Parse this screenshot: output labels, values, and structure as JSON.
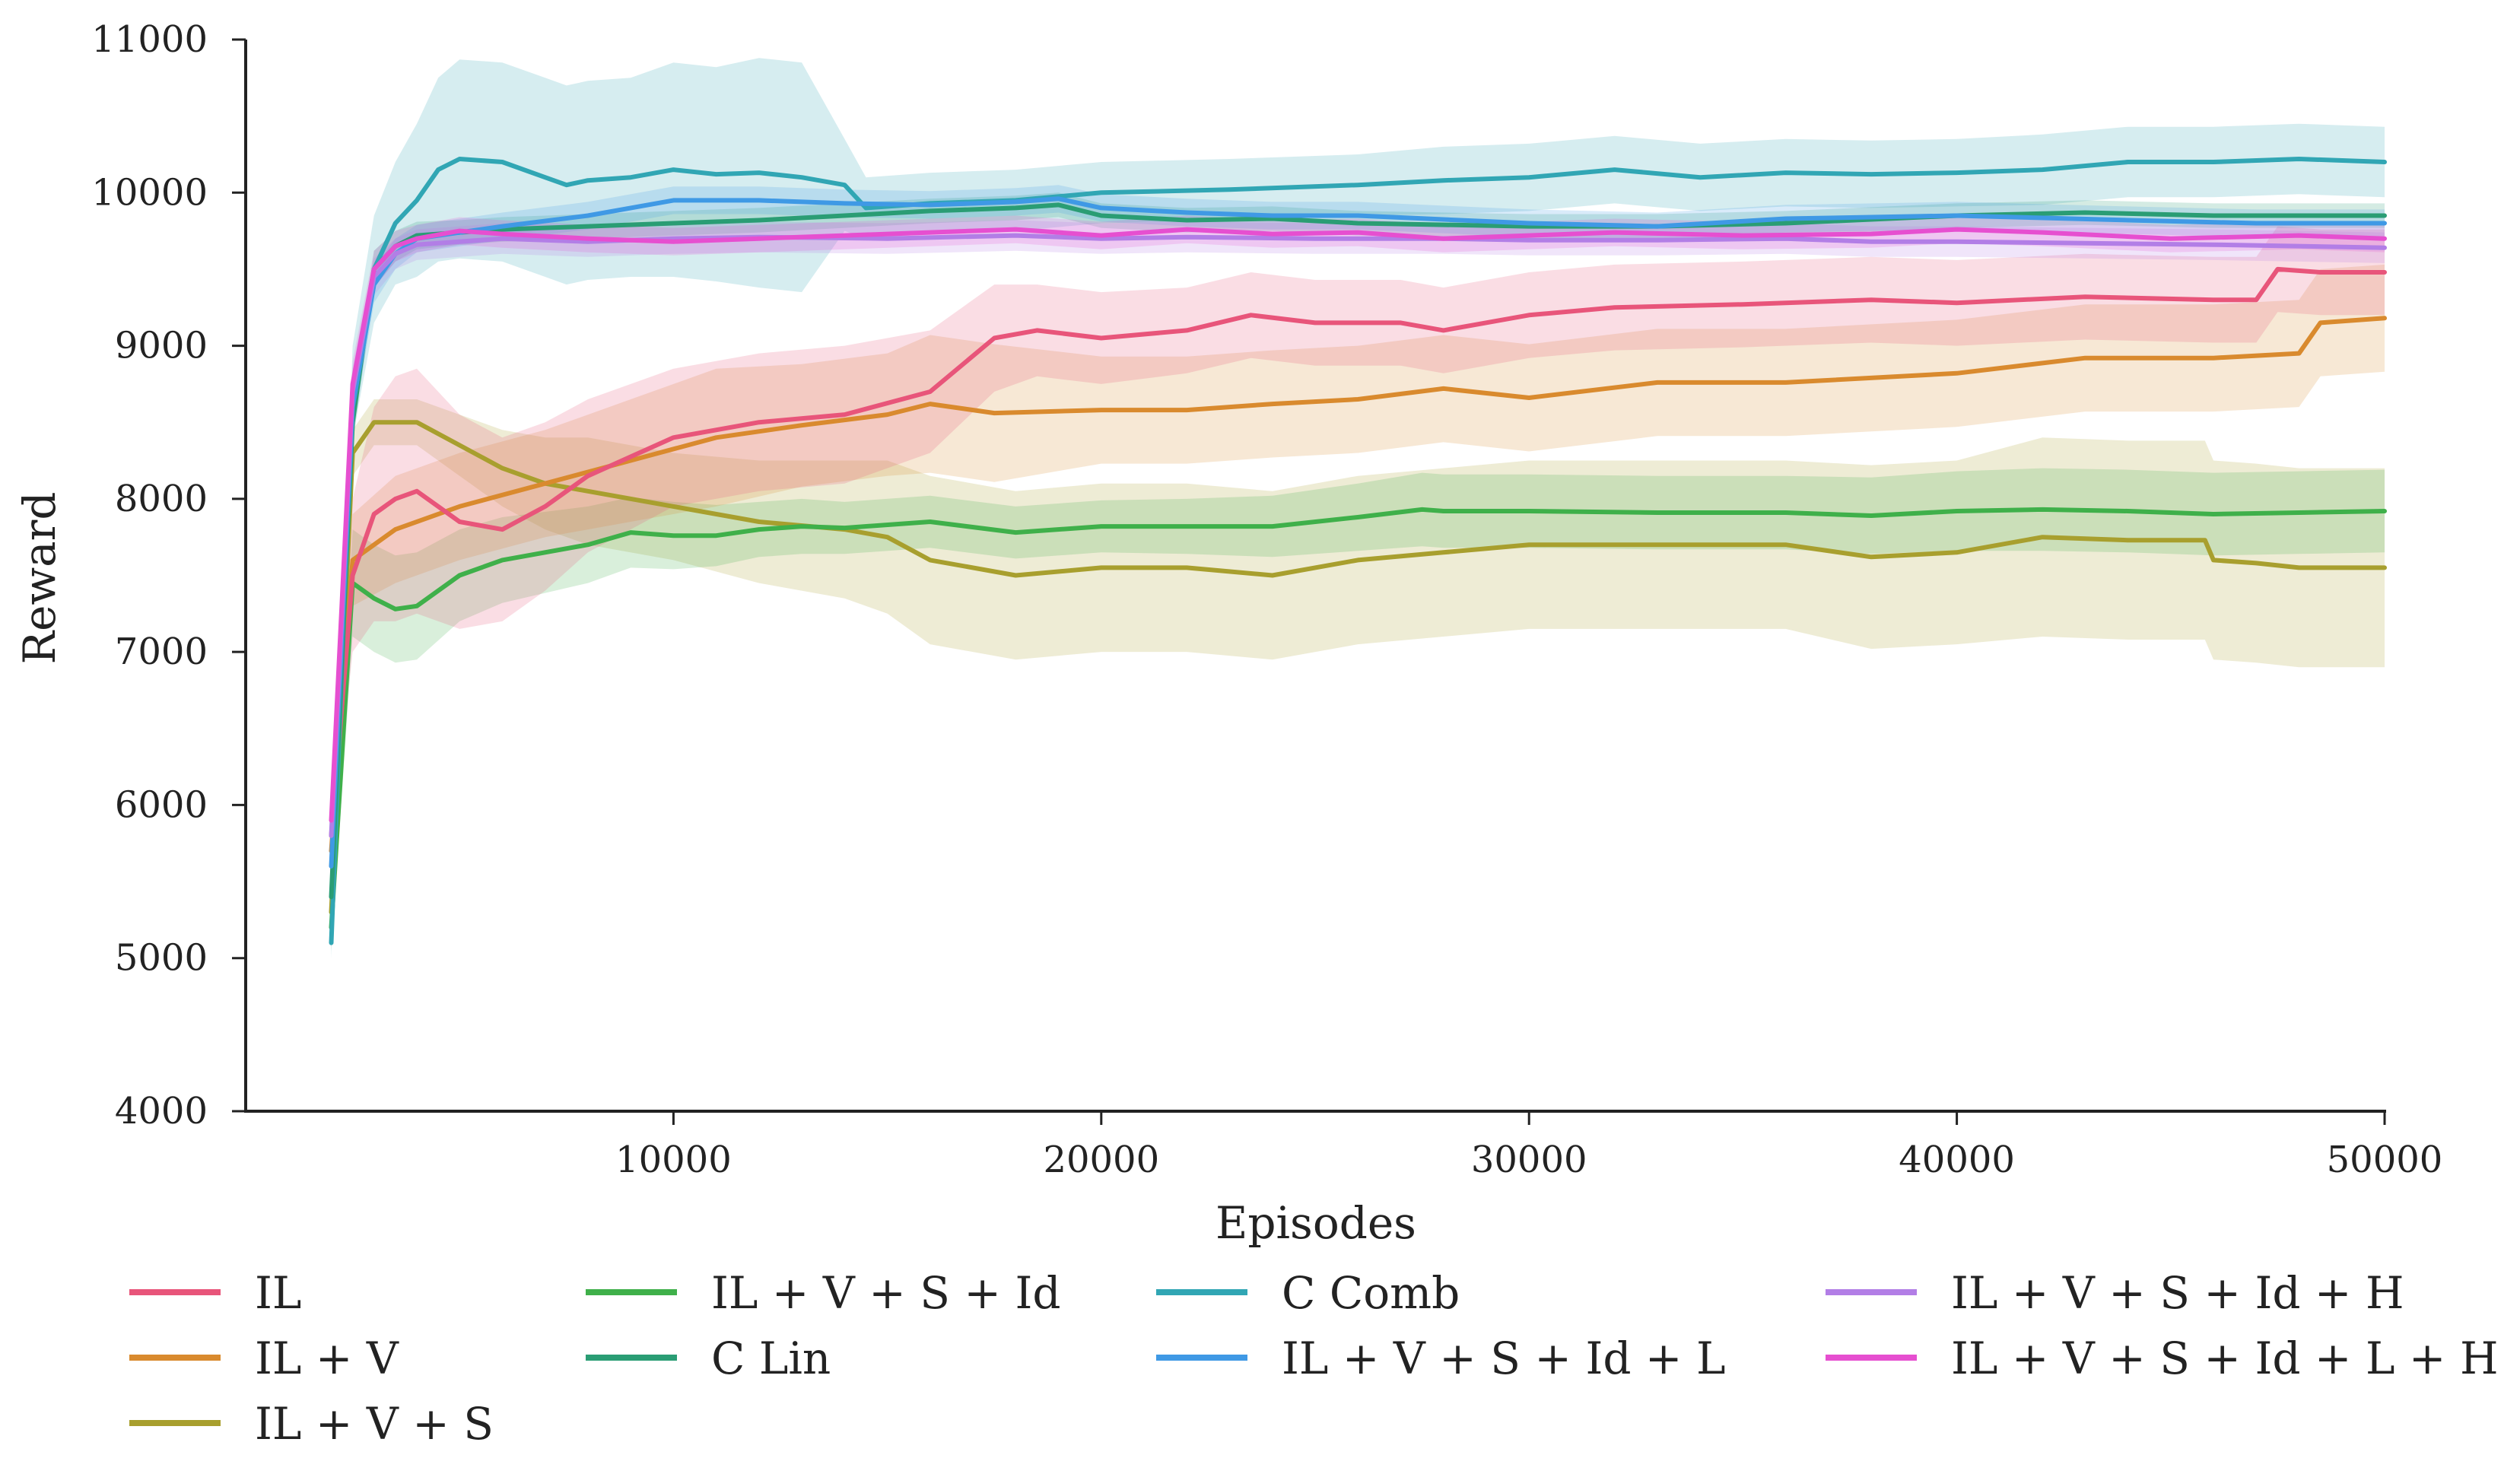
{
  "chart_data": {
    "type": "line",
    "title": "",
    "xlabel": "Episodes",
    "ylabel": "Reward",
    "xlim": [
      0,
      50000
    ],
    "ylim": [
      4000,
      11000
    ],
    "xticks": [
      10000,
      20000,
      30000,
      40000,
      50000
    ],
    "yticks": [
      4000,
      5000,
      6000,
      7000,
      8000,
      9000,
      10000,
      11000
    ],
    "grid": false,
    "legend_position": "bottom",
    "series": [
      {
        "name": "IL",
        "color": "#e8557a",
        "x": [
          2000,
          2500,
          3000,
          3500,
          4000,
          5000,
          6000,
          7000,
          8000,
          10000,
          12000,
          14000,
          16000,
          17500,
          18500,
          20000,
          22000,
          23500,
          25000,
          27000,
          28000,
          30000,
          32000,
          35000,
          38000,
          40000,
          43000,
          46000,
          47000,
          47500,
          48500,
          50000
        ],
        "y": [
          5800,
          7500,
          7900,
          8000,
          8050,
          7850,
          7800,
          7950,
          8150,
          8400,
          8500,
          8550,
          8700,
          9050,
          9100,
          9050,
          9100,
          9200,
          9150,
          9150,
          9100,
          9200,
          9250,
          9270,
          9300,
          9280,
          9320,
          9300,
          9300,
          9500,
          9480,
          9480
        ],
        "band_halfwidth": [
          100,
          500,
          700,
          800,
          800,
          700,
          600,
          550,
          500,
          450,
          450,
          450,
          400,
          350,
          300,
          300,
          280,
          280,
          280,
          280,
          280,
          280,
          280,
          280,
          280,
          280,
          280,
          280,
          280,
          280,
          280,
          280
        ]
      },
      {
        "name": "IL + V",
        "color": "#d98a2e",
        "x": [
          2000,
          2500,
          3500,
          5000,
          7000,
          9000,
          11000,
          13000,
          15000,
          16000,
          17500,
          20000,
          22000,
          24000,
          26000,
          28000,
          30000,
          33000,
          36000,
          40000,
          43000,
          46000,
          48000,
          48500,
          50000
        ],
        "y": [
          5700,
          7600,
          7800,
          7950,
          8100,
          8250,
          8400,
          8480,
          8550,
          8620,
          8560,
          8580,
          8580,
          8620,
          8650,
          8720,
          8660,
          8760,
          8760,
          8820,
          8920,
          8920,
          8950,
          9150,
          9180
        ],
        "band_halfwidth": [
          100,
          300,
          350,
          350,
          350,
          400,
          450,
          400,
          400,
          450,
          450,
          350,
          350,
          350,
          350,
          350,
          350,
          350,
          350,
          350,
          350,
          350,
          350,
          350,
          350
        ]
      },
      {
        "name": "IL + V + S",
        "color": "#a89f2e",
        "x": [
          2000,
          2500,
          3000,
          4000,
          5000,
          6000,
          7000,
          8000,
          10000,
          12000,
          14000,
          15000,
          16000,
          18000,
          20000,
          22000,
          24000,
          26000,
          28000,
          30000,
          33000,
          36000,
          38000,
          40000,
          42000,
          44000,
          45800,
          46000,
          47000,
          48000,
          50000
        ],
        "y": [
          5300,
          8300,
          8500,
          8500,
          8350,
          8200,
          8100,
          8050,
          7950,
          7850,
          7800,
          7750,
          7600,
          7500,
          7550,
          7550,
          7500,
          7600,
          7650,
          7700,
          7700,
          7700,
          7620,
          7650,
          7750,
          7730,
          7730,
          7600,
          7580,
          7550,
          7550
        ],
        "band_halfwidth": [
          150,
          150,
          150,
          150,
          200,
          250,
          300,
          350,
          350,
          400,
          450,
          500,
          550,
          550,
          550,
          550,
          550,
          550,
          550,
          550,
          550,
          550,
          600,
          600,
          650,
          650,
          650,
          650,
          650,
          650,
          650
        ]
      },
      {
        "name": "IL + V + S + Id",
        "color": "#3fb04a",
        "x": [
          2000,
          2500,
          3000,
          3500,
          4000,
          5000,
          6000,
          8000,
          9000,
          10000,
          11000,
          12000,
          13000,
          14000,
          16000,
          18000,
          20000,
          22000,
          24000,
          26000,
          27500,
          28000,
          30000,
          33000,
          36000,
          38000,
          40000,
          42000,
          44000,
          46000,
          48000,
          50000
        ],
        "y": [
          5200,
          7450,
          7350,
          7280,
          7300,
          7500,
          7600,
          7700,
          7780,
          7760,
          7760,
          7800,
          7820,
          7810,
          7850,
          7780,
          7820,
          7820,
          7820,
          7880,
          7930,
          7920,
          7920,
          7910,
          7910,
          7890,
          7920,
          7930,
          7920,
          7900,
          7910,
          7920
        ],
        "band_halfwidth": [
          150,
          350,
          350,
          350,
          350,
          300,
          280,
          250,
          230,
          220,
          200,
          180,
          180,
          170,
          170,
          170,
          170,
          180,
          200,
          220,
          240,
          240,
          240,
          240,
          240,
          250,
          260,
          270,
          270,
          270,
          270,
          270
        ]
      },
      {
        "name": "C Lin",
        "color": "#2a9d74",
        "x": [
          2000,
          2500,
          3000,
          3500,
          4000,
          5000,
          6000,
          8000,
          10000,
          12000,
          14000,
          16000,
          18000,
          19000,
          20000,
          22000,
          24000,
          26000,
          30000,
          33000,
          36000,
          40000,
          43000,
          46000,
          50000
        ],
        "y": [
          5400,
          8500,
          9500,
          9650,
          9720,
          9740,
          9760,
          9780,
          9800,
          9820,
          9850,
          9880,
          9900,
          9920,
          9850,
          9820,
          9830,
          9800,
          9780,
          9780,
          9800,
          9850,
          9870,
          9850,
          9850
        ],
        "band_halfwidth": [
          200,
          150,
          120,
          100,
          90,
          80,
          80,
          80,
          80,
          80,
          80,
          80,
          80,
          80,
          80,
          80,
          80,
          80,
          80,
          80,
          80,
          80,
          80,
          80,
          80
        ]
      },
      {
        "name": "C Comb",
        "color": "#31a6b4",
        "x": [
          2000,
          2500,
          3000,
          3500,
          4000,
          4500,
          5000,
          6000,
          7000,
          7500,
          8000,
          9000,
          10000,
          11000,
          12000,
          13000,
          14000,
          14500,
          16000,
          18000,
          20000,
          23000,
          26000,
          28000,
          30000,
          32000,
          34000,
          36000,
          38000,
          40000,
          42000,
          44000,
          46000,
          48000,
          50000
        ],
        "y": [
          5100,
          8700,
          9500,
          9800,
          9950,
          10150,
          10220,
          10200,
          10100,
          10050,
          10080,
          10100,
          10150,
          10120,
          10130,
          10100,
          10050,
          9900,
          9930,
          9950,
          10000,
          10020,
          10050,
          10080,
          10100,
          10150,
          10100,
          10130,
          10120,
          10130,
          10150,
          10200,
          10200,
          10220,
          10200
        ],
        "band_halfwidth": [
          100,
          300,
          350,
          400,
          500,
          600,
          650,
          650,
          650,
          650,
          650,
          650,
          700,
          700,
          750,
          750,
          300,
          200,
          200,
          200,
          200,
          200,
          200,
          220,
          220,
          220,
          220,
          220,
          220,
          220,
          230,
          230,
          230,
          230,
          230
        ]
      },
      {
        "name": "IL + V + S + Id + L",
        "color": "#3f99e5",
        "x": [
          2000,
          2500,
          3000,
          3500,
          4000,
          6000,
          8000,
          10000,
          12000,
          14000,
          16000,
          18000,
          19000,
          20000,
          22000,
          24000,
          26000,
          30000,
          33000,
          36000,
          40000,
          44000,
          47000,
          50000
        ],
        "y": [
          5600,
          8600,
          9400,
          9600,
          9700,
          9780,
          9850,
          9950,
          9950,
          9930,
          9920,
          9940,
          9960,
          9900,
          9870,
          9850,
          9850,
          9800,
          9780,
          9830,
          9850,
          9820,
          9800,
          9800
        ],
        "band_halfwidth": [
          150,
          150,
          120,
          100,
          90,
          90,
          90,
          90,
          90,
          90,
          90,
          90,
          90,
          90,
          90,
          90,
          90,
          90,
          90,
          90,
          90,
          90,
          90,
          90
        ]
      },
      {
        "name": "IL + V + S + Id + H",
        "color": "#b27ee6",
        "x": [
          2000,
          2500,
          3000,
          3500,
          4000,
          6000,
          8000,
          10000,
          12000,
          15000,
          18000,
          20000,
          22000,
          25000,
          28000,
          30000,
          33000,
          36000,
          38000,
          40000,
          43000,
          46000,
          50000
        ],
        "y": [
          5800,
          8700,
          9450,
          9600,
          9660,
          9700,
          9680,
          9700,
          9710,
          9700,
          9720,
          9700,
          9710,
          9700,
          9700,
          9690,
          9690,
          9700,
          9680,
          9680,
          9670,
          9660,
          9640
        ],
        "band_halfwidth": [
          150,
          150,
          120,
          100,
          100,
          100,
          100,
          100,
          100,
          100,
          100,
          100,
          100,
          100,
          100,
          100,
          100,
          100,
          100,
          100,
          100,
          100,
          100
        ]
      },
      {
        "name": "IL + V + S + Id + L + H",
        "color": "#e64fd0",
        "x": [
          2000,
          2500,
          3000,
          3500,
          4000,
          5000,
          6000,
          8000,
          10000,
          12000,
          14000,
          16000,
          18000,
          20000,
          22000,
          24000,
          26000,
          28000,
          30000,
          32000,
          35000,
          38000,
          40000,
          42000,
          45000,
          48000,
          50000
        ],
        "y": [
          5900,
          8750,
          9500,
          9650,
          9700,
          9750,
          9730,
          9700,
          9680,
          9700,
          9720,
          9740,
          9760,
          9720,
          9760,
          9730,
          9740,
          9700,
          9720,
          9740,
          9720,
          9730,
          9760,
          9740,
          9700,
          9720,
          9700
        ],
        "band_halfwidth": [
          150,
          150,
          120,
          100,
          90,
          90,
          90,
          90,
          90,
          90,
          90,
          90,
          90,
          90,
          90,
          90,
          90,
          90,
          90,
          90,
          90,
          90,
          90,
          90,
          90,
          90,
          90
        ]
      }
    ]
  },
  "legend": {
    "col1": [
      "IL",
      "IL + V",
      "IL + V + S"
    ],
    "col2": [
      "IL + V + S + Id",
      "C Lin"
    ],
    "col3": [
      "C Comb",
      "IL + V + S + Id + L"
    ],
    "col4": [
      "IL + V + S + Id + H",
      "IL + V + S + Id + L + H"
    ]
  }
}
